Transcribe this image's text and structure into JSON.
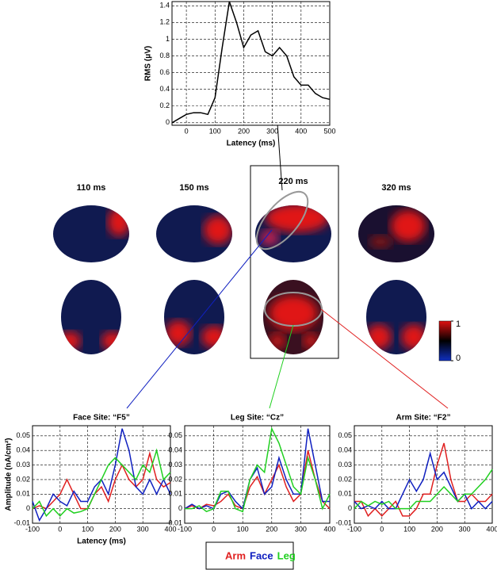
{
  "chart_data": [
    {
      "type": "line",
      "ylabel": "RMS (μV)",
      "xlabel": "Latency (ms)",
      "x": [
        -50,
        -25,
        0,
        25,
        50,
        75,
        100,
        125,
        150,
        175,
        200,
        225,
        250,
        275,
        300,
        325,
        350,
        375,
        400,
        425,
        450,
        475,
        500
      ],
      "series": [
        {
          "color": "#000000",
          "values": [
            0,
            0.05,
            0.1,
            0.12,
            0.12,
            0.1,
            0.3,
            0.9,
            1.45,
            1.2,
            0.9,
            1.05,
            1.1,
            0.85,
            0.8,
            0.9,
            0.8,
            0.55,
            0.45,
            0.45,
            0.35,
            0.3,
            0.28
          ]
        }
      ],
      "xlim": [
        -50,
        500
      ],
      "xticks": [
        0,
        100,
        200,
        300,
        400,
        500
      ],
      "ylim": [
        -0.03,
        1.45
      ],
      "yticks": [
        0,
        0.2,
        0.4,
        0.6,
        0.8,
        1,
        1.2,
        1.4
      ],
      "grid": true
    },
    {
      "type": "line",
      "title": "Face Site: “F5”",
      "ylabel": "Amplitude (nA/cm²)",
      "xlabel": "Latency (ms)",
      "x": [
        -100,
        -75,
        -50,
        -25,
        0,
        25,
        50,
        75,
        100,
        125,
        150,
        175,
        200,
        225,
        250,
        275,
        300,
        325,
        350,
        375,
        400
      ],
      "series": [
        {
          "name": "Arm",
          "color": "#e02020",
          "values": [
            0,
            0.002,
            0,
            0.005,
            0.01,
            0.02,
            0.01,
            0,
            0,
            0.01,
            0.015,
            0.005,
            0.02,
            0.03,
            0.02,
            0.015,
            0.02,
            0.038,
            0.02,
            0.015,
            0.018
          ]
        },
        {
          "name": "Face",
          "color": "#1020c0",
          "values": [
            0.005,
            -0.008,
            0,
            0.01,
            0.005,
            0.002,
            0.012,
            0.005,
            0.005,
            0.015,
            0.02,
            0.01,
            0.03,
            0.055,
            0.04,
            0.015,
            0.01,
            0.02,
            0.01,
            0.02,
            0.01
          ]
        },
        {
          "name": "Leg",
          "color": "#20d020",
          "values": [
            0,
            0.005,
            -0.005,
            0,
            -0.005,
            0,
            -0.003,
            -0.002,
            0,
            0.01,
            0.02,
            0.03,
            0.035,
            0.03,
            0.025,
            0.02,
            0.03,
            0.025,
            0.04,
            0.02,
            0.025
          ]
        }
      ],
      "xlim": [
        -100,
        400
      ],
      "xticks": [
        -100,
        0,
        100,
        200,
        300,
        400
      ],
      "ylim": [
        -0.01,
        0.057
      ],
      "yticks": [
        -0.01,
        0,
        0.01,
        0.02,
        0.03,
        0.04,
        0.05
      ],
      "grid": true
    },
    {
      "type": "line",
      "title": "Leg Site: “Cz”",
      "x": [
        -100,
        -75,
        -50,
        -25,
        0,
        25,
        50,
        75,
        100,
        125,
        150,
        175,
        200,
        225,
        250,
        275,
        300,
        325,
        350,
        375,
        400
      ],
      "series": [
        {
          "color": "#e02020",
          "values": [
            0,
            0.002,
            0,
            0.003,
            0.002,
            0.005,
            0.01,
            0.002,
            0,
            0.015,
            0.022,
            0.01,
            0.02,
            0.03,
            0.015,
            0.005,
            0.01,
            0.04,
            0.02,
            0.005,
            0
          ]
        },
        {
          "color": "#1020c0",
          "values": [
            0,
            0.003,
            0,
            0.002,
            0,
            0.01,
            0.012,
            0.005,
            0,
            0.02,
            0.028,
            0.01,
            0.015,
            0.035,
            0.02,
            0.01,
            0.01,
            0.055,
            0.03,
            0.005,
            0.005
          ]
        },
        {
          "color": "#20d020",
          "values": [
            0,
            0,
            0.002,
            -0.002,
            0,
            0.012,
            0.012,
            0,
            -0.002,
            0.02,
            0.03,
            0.025,
            0.055,
            0.045,
            0.03,
            0.015,
            0.01,
            0.035,
            0.02,
            0,
            0.01
          ]
        }
      ],
      "xlim": [
        -100,
        400
      ],
      "xticks": [
        -100,
        0,
        100,
        200,
        300,
        400
      ],
      "ylim": [
        -0.01,
        0.057
      ],
      "yticks": [
        -0.01,
        0,
        0.01,
        0.02,
        0.03,
        0.04,
        0.05
      ],
      "grid": true
    },
    {
      "type": "line",
      "title": "Arm Site: “F2”",
      "x": [
        -100,
        -75,
        -50,
        -25,
        0,
        25,
        50,
        75,
        100,
        125,
        150,
        175,
        200,
        225,
        250,
        275,
        300,
        325,
        350,
        375,
        400
      ],
      "series": [
        {
          "color": "#e02020",
          "values": [
            0.005,
            0.005,
            -0.005,
            0,
            -0.005,
            0,
            0.005,
            -0.005,
            -0.005,
            0,
            0.01,
            0.01,
            0.03,
            0.045,
            0.02,
            0.005,
            0.005,
            0.01,
            0.005,
            0.005,
            0.01
          ]
        },
        {
          "color": "#1020c0",
          "values": [
            0.005,
            0,
            0.002,
            0,
            0.005,
            0,
            0,
            0.01,
            0.02,
            0.012,
            0.02,
            0.038,
            0.02,
            0.025,
            0.015,
            0.005,
            0.01,
            0,
            0.005,
            0,
            0.005
          ]
        },
        {
          "color": "#20d020",
          "values": [
            0,
            0.005,
            0.002,
            0.005,
            0.003,
            0.005,
            0,
            0,
            0,
            0.005,
            0.005,
            0.005,
            0.01,
            0.015,
            0.01,
            0.005,
            0.01,
            0.01,
            0.015,
            0.02,
            0.027
          ]
        }
      ],
      "xlim": [
        -100,
        400
      ],
      "xticks": [
        -100,
        0,
        100,
        200,
        300,
        400
      ],
      "ylim": [
        -0.01,
        0.057
      ],
      "yticks": [
        -0.01,
        0,
        0.01,
        0.02,
        0.03,
        0.04,
        0.05
      ],
      "grid": true
    }
  ],
  "brain_maps": {
    "times": [
      "110 ms",
      "150 ms",
      "220 ms",
      "320 ms"
    ],
    "colorbar_ticks": [
      0,
      1
    ]
  }
}
